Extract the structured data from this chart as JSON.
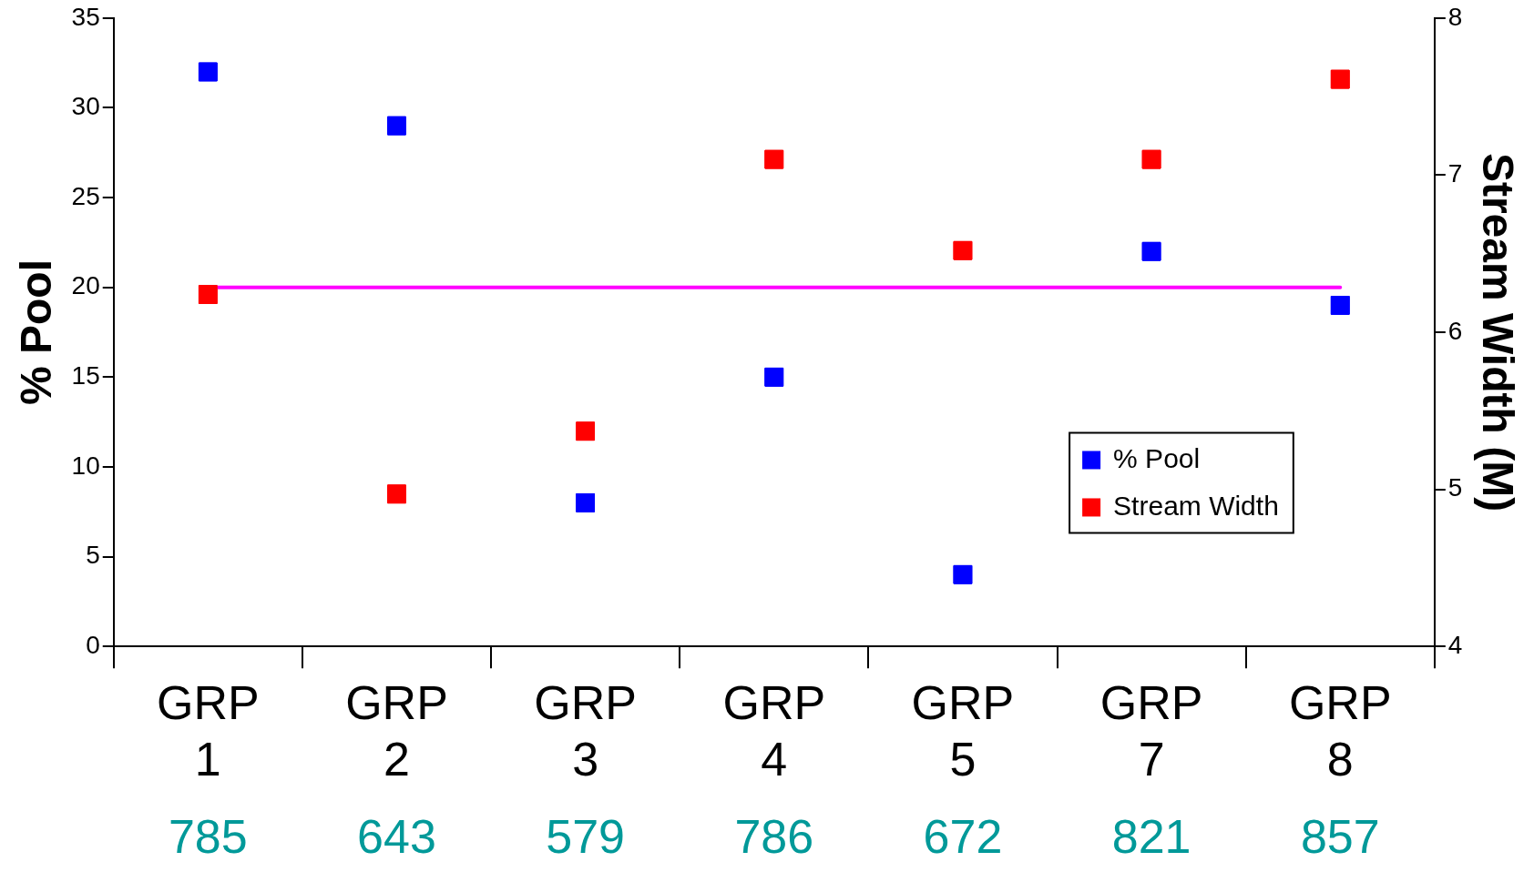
{
  "chart_data": {
    "type": "scatter",
    "categories": [
      "GRP 1",
      "GRP 2",
      "GRP 3",
      "GRP 4",
      "GRP 5",
      "GRP 7",
      "GRP 8"
    ],
    "ylabel": "% Pool",
    "y2label": "Stream Width (M)",
    "ylim": [
      0,
      35
    ],
    "yticks": [
      0,
      5,
      10,
      15,
      20,
      25,
      30,
      35
    ],
    "y2lim": [
      4,
      8
    ],
    "y2ticks": [
      4,
      5,
      6,
      7,
      8
    ],
    "series": [
      {
        "name": "% Pool",
        "color": "#0000ff",
        "values": [
          32,
          29,
          8,
          15,
          4,
          22,
          19
        ]
      },
      {
        "name": "Stream Width",
        "color": "#ff0000",
        "axis": "y2",
        "values": [
          6.24,
          4.97,
          5.37,
          7.1,
          6.52,
          7.1,
          7.61
        ]
      }
    ],
    "ref_lines": [
      {
        "axis": "y",
        "value": 20,
        "color": "#ff00ff"
      }
    ],
    "annotations": [
      "785",
      "643",
      "579",
      "786",
      "672",
      "821",
      "857"
    ],
    "marker": "square",
    "grid": false,
    "legend": "right"
  }
}
